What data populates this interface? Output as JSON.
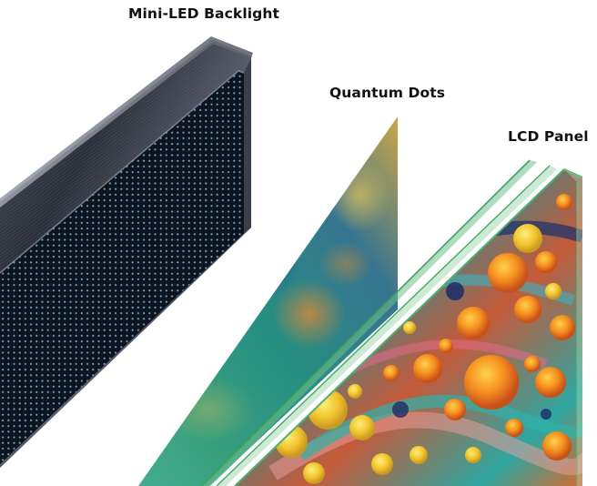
{
  "labels": {
    "backlight": "Mini-LED Backlight",
    "quantum_dots": "Quantum Dots",
    "lcd_panel": "LCD Panel"
  },
  "colors": {
    "frame_dark": "#2b2f3a",
    "frame_light": "#6a6f7c",
    "led_panel": "#0e1622",
    "led_dot": "#6fa8c8",
    "qd_blue": "#1f5f8a",
    "qd_teal": "#1f8f7f",
    "qd_gold": "#c9a040",
    "glass_edge": "#3fa060",
    "swirl_orange": "#f08a20",
    "swirl_yellow": "#f5d23a",
    "swirl_navy": "#1a2f6a",
    "swirl_teal": "#2aa59a"
  }
}
